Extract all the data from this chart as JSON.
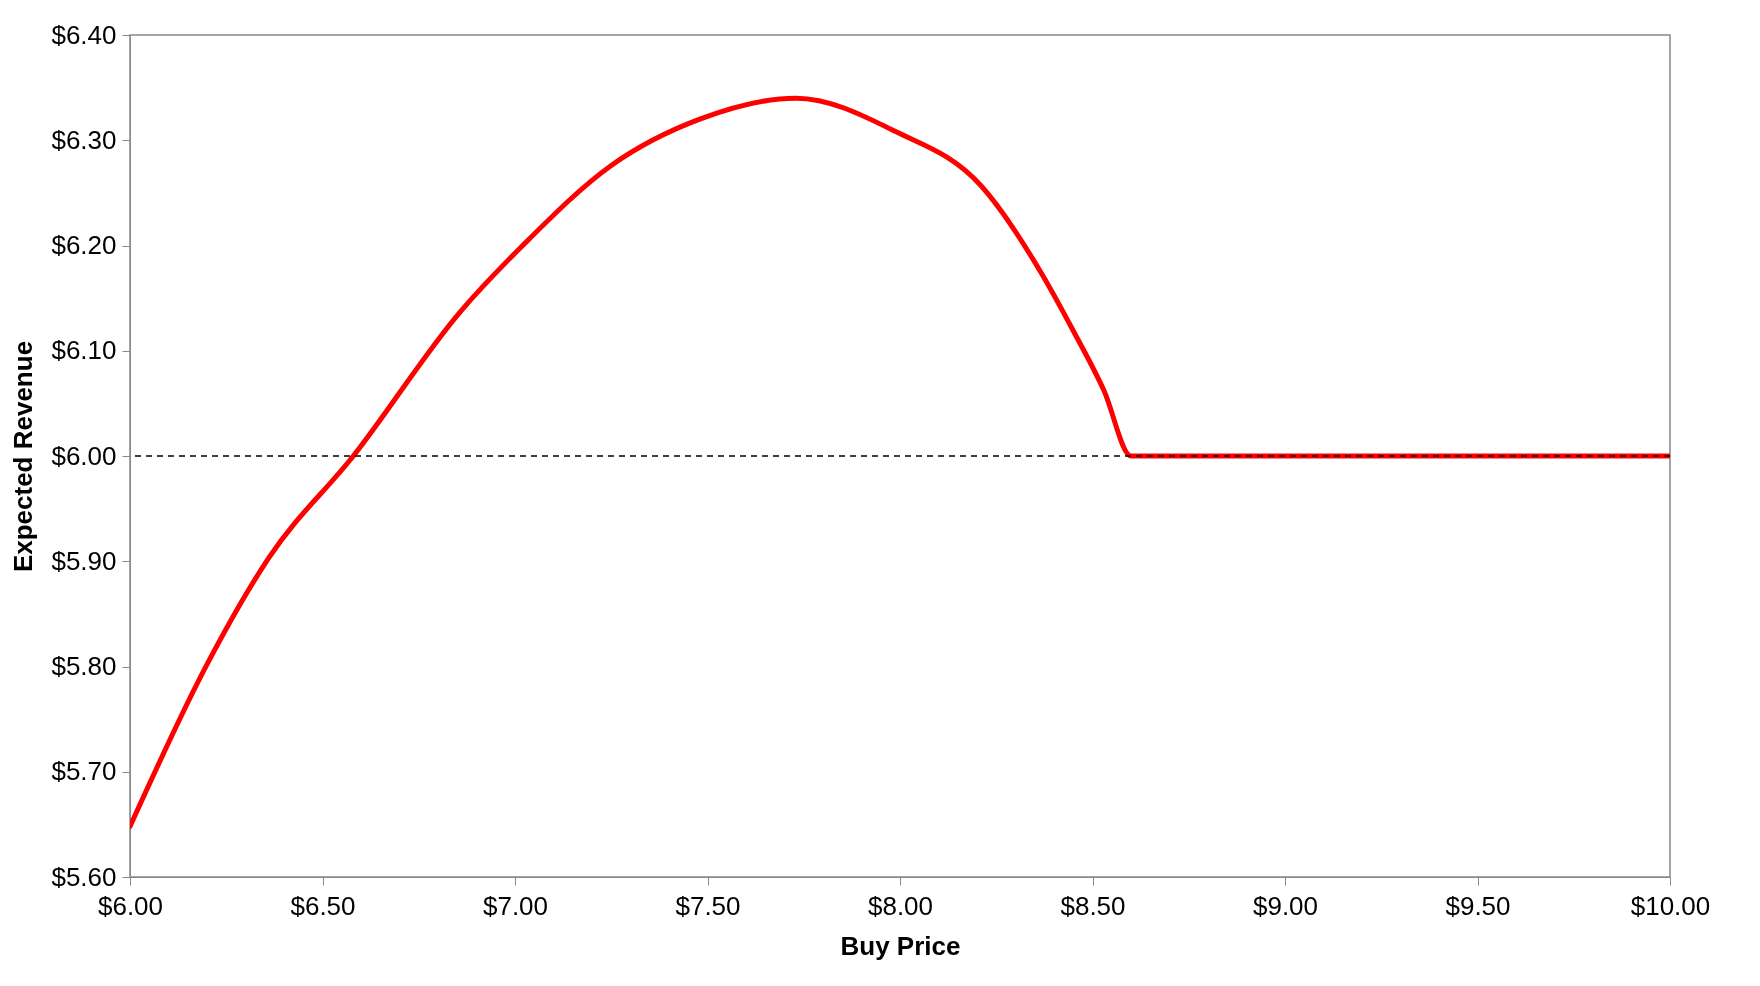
{
  "chart_data": {
    "type": "line",
    "xlabel": "Buy Price",
    "ylabel": "Expected Revenue",
    "x": [
      6.0,
      6.2,
      6.36,
      6.58,
      6.86,
      7.02,
      7.25,
      7.48,
      7.73,
      7.99,
      8.21,
      8.37,
      8.45,
      8.53,
      8.6,
      10.0
    ],
    "series": [
      {
        "color": "#ff0000",
        "values": [
          5.648,
          5.802,
          5.903,
          6.0,
          6.138,
          6.2,
          6.276,
          6.32,
          6.34,
          6.308,
          6.257,
          6.172,
          6.119,
          6.062,
          6.0,
          6.0
        ]
      }
    ],
    "xlim": [
      6,
      10
    ],
    "ylim": [
      5.6,
      6.4
    ],
    "xticks": [
      {
        "value": 6,
        "label": "$6.00"
      },
      {
        "value": 6.5,
        "label": "$6.50"
      },
      {
        "value": 7,
        "label": "$7.00"
      },
      {
        "value": 7.5,
        "label": "$7.50"
      },
      {
        "value": 8,
        "label": "$8.00"
      },
      {
        "value": 8.5,
        "label": "$8.50"
      },
      {
        "value": 9,
        "label": "$9.00"
      },
      {
        "value": 9.5,
        "label": "$9.50"
      },
      {
        "value": 10,
        "label": "$10.00"
      }
    ],
    "yticks": [
      {
        "value": 5.6,
        "label": "$5.60"
      },
      {
        "value": 5.7,
        "label": "$5.70"
      },
      {
        "value": 5.8,
        "label": "$5.80"
      },
      {
        "value": 5.9,
        "label": "$5.90"
      },
      {
        "value": 6,
        "label": "$6.00"
      },
      {
        "value": 6.1,
        "label": "$6.10"
      },
      {
        "value": 6.2,
        "label": "$6.20"
      },
      {
        "value": 6.3,
        "label": "$6.30"
      },
      {
        "value": 6.4,
        "label": "$6.40"
      }
    ],
    "ref_lines": [
      {
        "axis": "y",
        "value": 6.0,
        "color": "#000000",
        "line_style": "dashed"
      }
    ],
    "grid": false
  }
}
